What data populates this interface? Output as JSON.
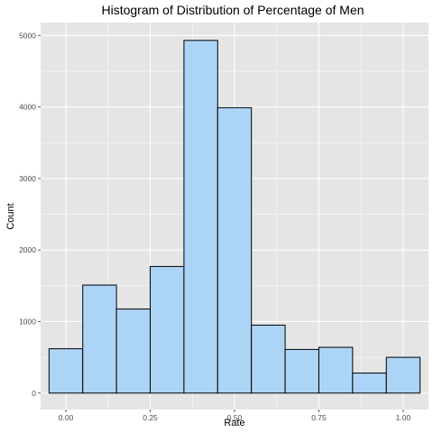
{
  "chart_data": {
    "type": "bar",
    "title": "Histogram of Distribution of Percentage of Men",
    "xlabel": "Rate",
    "ylabel": "Count",
    "bins": [
      {
        "x": 0.0,
        "count": 620
      },
      {
        "x": 0.1,
        "count": 1510
      },
      {
        "x": 0.2,
        "count": 1175
      },
      {
        "x": 0.3,
        "count": 1770
      },
      {
        "x": 0.4,
        "count": 4930
      },
      {
        "x": 0.5,
        "count": 3990
      },
      {
        "x": 0.6,
        "count": 950
      },
      {
        "x": 0.7,
        "count": 610
      },
      {
        "x": 0.8,
        "count": 640
      },
      {
        "x": 0.9,
        "count": 280
      },
      {
        "x": 1.0,
        "count": 500
      }
    ],
    "bin_width": 0.1,
    "xlim": [
      -0.075,
      1.075
    ],
    "ylim": [
      -230,
      5180
    ],
    "x_ticks": [
      {
        "value": 0.0,
        "label": "0.00"
      },
      {
        "value": 0.25,
        "label": "0.25"
      },
      {
        "value": 0.5,
        "label": "0.50"
      },
      {
        "value": 0.75,
        "label": "0.75"
      },
      {
        "value": 1.0,
        "label": "1.00"
      }
    ],
    "y_ticks": [
      {
        "value": 0,
        "label": "0"
      },
      {
        "value": 1000,
        "label": "1000"
      },
      {
        "value": 2000,
        "label": "2000"
      },
      {
        "value": 3000,
        "label": "3000"
      },
      {
        "value": 4000,
        "label": "4000"
      },
      {
        "value": 5000,
        "label": "5000"
      }
    ],
    "grid": true,
    "colors": {
      "panel_background": "#e5e5e5",
      "grid_major": "#ffffff",
      "bar_fill": "#acd4f6",
      "bar_outline": "#000000",
      "tick_label": "#4d4d4d"
    }
  }
}
